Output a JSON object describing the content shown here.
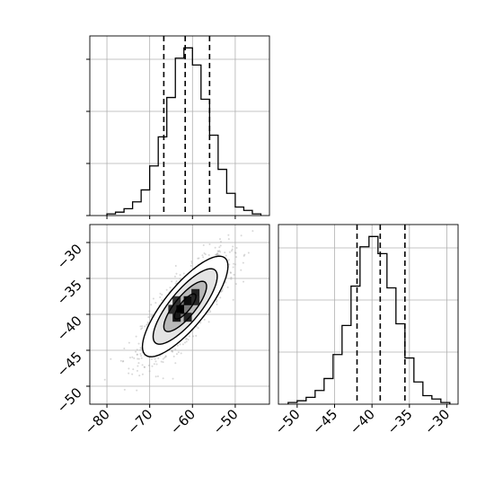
{
  "chart_data": [
    {
      "type": "histogram",
      "panel": "top-left",
      "variable": "x",
      "xlim": [
        -84,
        -42
      ],
      "bin_width": 2,
      "bins": [
        {
          "x0": -80,
          "x1": -78,
          "count": 0.01
        },
        {
          "x0": -78,
          "x1": -76,
          "count": 0.02
        },
        {
          "x0": -76,
          "x1": -74,
          "count": 0.04
        },
        {
          "x0": -74,
          "x1": -72,
          "count": 0.08
        },
        {
          "x0": -72,
          "x1": -70,
          "count": 0.15
        },
        {
          "x0": -70,
          "x1": -68,
          "count": 0.29
        },
        {
          "x0": -68,
          "x1": -66,
          "count": 0.46
        },
        {
          "x0": -66,
          "x1": -64,
          "count": 0.69
        },
        {
          "x0": -64,
          "x1": -62,
          "count": 0.92
        },
        {
          "x0": -62,
          "x1": -60,
          "count": 0.98
        },
        {
          "x0": -60,
          "x1": -58,
          "count": 0.88
        },
        {
          "x0": -58,
          "x1": -56,
          "count": 0.68
        },
        {
          "x0": -56,
          "x1": -54,
          "count": 0.47
        },
        {
          "x0": -54,
          "x1": -52,
          "count": 0.27
        },
        {
          "x0": -52,
          "x1": -50,
          "count": 0.13
        },
        {
          "x0": -50,
          "x1": -48,
          "count": 0.05
        },
        {
          "x0": -48,
          "x1": -46,
          "count": 0.03
        },
        {
          "x0": -46,
          "x1": -44,
          "count": 0.01
        }
      ],
      "quantile_lines": [
        -66.7,
        -61.7,
        -56.0
      ],
      "ytick_marks": 4,
      "grid": true
    },
    {
      "type": "hist2d",
      "panel": "bottom-left",
      "xlim": [
        -84,
        -42
      ],
      "ylim": [
        -52.5,
        -27.5
      ],
      "xticks": [
        "−80",
        "−70",
        "−60",
        "−50"
      ],
      "xtick_values": [
        -80,
        -70,
        -60,
        -50
      ],
      "yticks": [
        "−30",
        "−35",
        "−40",
        "−45",
        "−50"
      ],
      "ytick_values": [
        -30,
        -35,
        -40,
        -45,
        -50
      ],
      "center": [
        -61.7,
        -38.9
      ],
      "sigma": [
        5.0,
        3.5
      ],
      "correlation": 0.8,
      "density_cells": [
        {
          "x": -62.9,
          "y": -39.3,
          "level": 1.0
        },
        {
          "x": -61.1,
          "y": -38.1,
          "level": 0.85
        },
        {
          "x": -59.3,
          "y": -37.1,
          "level": 0.6
        },
        {
          "x": -63.7,
          "y": -40.4,
          "level": 0.7
        },
        {
          "x": -61.1,
          "y": -40.4,
          "level": 0.55
        },
        {
          "x": -64.7,
          "y": -39.3,
          "level": 0.45
        },
        {
          "x": -59.3,
          "y": -38.1,
          "level": 0.5
        },
        {
          "x": -63.7,
          "y": -38.1,
          "level": 0.4
        }
      ],
      "contour_levels_sigma": [
        0.5,
        1.0,
        1.5,
        2.0
      ],
      "grid": true
    },
    {
      "type": "histogram",
      "panel": "bottom-right",
      "variable": "y",
      "xlim": [
        -52.5,
        -28.5
      ],
      "bin_width": 1.2,
      "bins": [
        {
          "x0": -51.2,
          "x1": -50.0,
          "count": 0.01
        },
        {
          "x0": -50.0,
          "x1": -48.8,
          "count": 0.02
        },
        {
          "x0": -48.8,
          "x1": -47.6,
          "count": 0.04
        },
        {
          "x0": -47.6,
          "x1": -46.4,
          "count": 0.08
        },
        {
          "x0": -46.4,
          "x1": -45.2,
          "count": 0.15
        },
        {
          "x0": -45.2,
          "x1": -44.0,
          "count": 0.29
        },
        {
          "x0": -44.0,
          "x1": -42.8,
          "count": 0.46
        },
        {
          "x0": -42.8,
          "x1": -41.6,
          "count": 0.69
        },
        {
          "x0": -41.6,
          "x1": -40.4,
          "count": 0.92
        },
        {
          "x0": -40.4,
          "x1": -39.2,
          "count": 0.98
        },
        {
          "x0": -39.2,
          "x1": -38.0,
          "count": 0.88
        },
        {
          "x0": -38.0,
          "x1": -36.8,
          "count": 0.68
        },
        {
          "x0": -36.8,
          "x1": -35.6,
          "count": 0.47
        },
        {
          "x0": -35.6,
          "x1": -34.4,
          "count": 0.27
        },
        {
          "x0": -34.4,
          "x1": -33.2,
          "count": 0.13
        },
        {
          "x0": -33.2,
          "x1": -32.0,
          "count": 0.05
        },
        {
          "x0": -32.0,
          "x1": -30.8,
          "count": 0.03
        },
        {
          "x0": -30.8,
          "x1": -29.6,
          "count": 0.01
        }
      ],
      "quantile_lines": [
        -42.0,
        -38.9,
        -35.6
      ],
      "xticks": [
        "−50",
        "−45",
        "−40",
        "−35",
        "−30"
      ],
      "xtick_values": [
        -50,
        -45,
        -40,
        -35,
        -30
      ],
      "grid": true
    }
  ],
  "colors": {
    "line": "#000000",
    "grid": "#b0b0b0",
    "scatter": "#a9a9a9",
    "quantile": "#000000"
  }
}
